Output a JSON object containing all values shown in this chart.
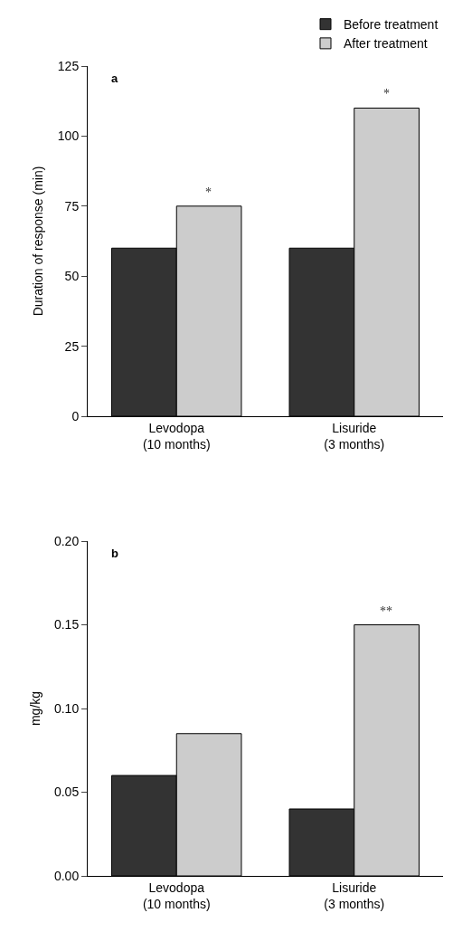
{
  "chart_data": [
    {
      "type": "bar",
      "ylabel": "Duration of response (min)",
      "categories": [
        "Levodopa\n(10 months)",
        "Lisuride\n(3 months)"
      ],
      "series": [
        {
          "name": "Before treatment",
          "color": "#333333",
          "values": [
            60,
            60
          ]
        },
        {
          "name": "After treatment",
          "color": "#cccccc",
          "values": [
            75,
            110
          ]
        }
      ],
      "ylim": [
        0,
        125
      ],
      "yticks": [
        0,
        25,
        50,
        75,
        100,
        125
      ],
      "grid": false,
      "legend": "top right",
      "annotations": [
        "a",
        {
          "text": "*",
          "x": "Levodopa\n(10 months)",
          "y": 75
        },
        {
          "text": "*",
          "x": "Lisuride\n(3 months)",
          "y": 110
        }
      ]
    },
    {
      "type": "bar",
      "ylabel": "mg/kg",
      "categories": [
        "Levodopa\n(10 months)",
        "Lisuride\n(3 months)"
      ],
      "series": [
        {
          "color": "#333333",
          "values": [
            0.06,
            0.04
          ]
        },
        {
          "color": "#cccccc",
          "values": [
            0.085,
            0.15
          ]
        }
      ],
      "ylim": [
        0,
        0.2
      ],
      "yticks": [
        {
          "value": 0,
          "label": "0.00"
        },
        {
          "value": 0.05,
          "label": "0.05"
        },
        {
          "value": 0.1,
          "label": "0.10"
        },
        {
          "value": 0.15,
          "label": "0.15"
        },
        {
          "value": 0.2,
          "label": "0.20"
        }
      ],
      "grid": false,
      "legend": false,
      "annotations": [
        "b",
        {
          "text": "**",
          "x": "Lisuride\n(3 months)",
          "y": 0.15
        }
      ]
    }
  ]
}
